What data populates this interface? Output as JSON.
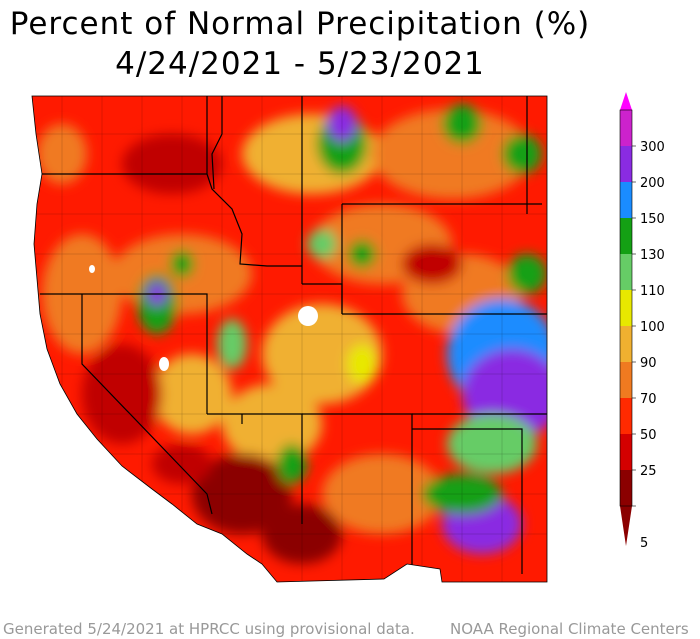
{
  "title_line1": "Percent of Normal Precipitation (%)",
  "title_line2": "4/24/2021 - 5/23/2021",
  "footer_left": "Generated 5/24/2021 at HPRCC using provisional data.",
  "footer_right": "NOAA Regional Climate Centers",
  "legend": {
    "bins": [
      {
        "label": "5",
        "color": "#8b0000"
      },
      {
        "label": "25",
        "color": "#d40000"
      },
      {
        "label": "50",
        "color": "#ff2a00"
      },
      {
        "label": "70",
        "color": "#f07a20"
      },
      {
        "label": "90",
        "color": "#f0b030"
      },
      {
        "label": "100",
        "color": "#e8e800"
      },
      {
        "label": "110",
        "color": "#66cc66"
      },
      {
        "label": "130",
        "color": "#14a014"
      },
      {
        "label": "150",
        "color": "#1a8cff"
      },
      {
        "label": "200",
        "color": "#8a2be2"
      },
      {
        "label": "300",
        "color": "#cc22cc"
      }
    ],
    "top_color": "#ff00ff"
  }
}
